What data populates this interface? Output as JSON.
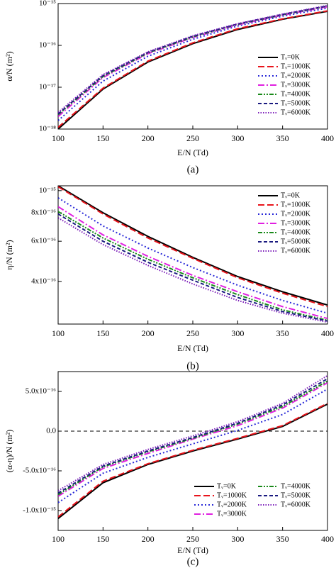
{
  "chart_data": [
    {
      "type": "line",
      "caption": "(a)",
      "xlabel": "E/N (Td)",
      "ylabel": "α/N (m²)",
      "ylog": true,
      "legend": "lower right",
      "legend_columns": 1,
      "x": [
        100,
        150,
        200,
        250,
        300,
        350,
        400
      ],
      "xlim": [
        100,
        400
      ],
      "xticks": [
        100,
        150,
        200,
        250,
        300,
        350,
        400
      ],
      "ylim": [
        1e-18,
        1e-15
      ],
      "yticks": [
        {
          "value": 1e-18,
          "label": "10⁻¹⁸"
        },
        {
          "value": 1e-17,
          "label": "10⁻¹⁷"
        },
        {
          "value": 1e-16,
          "label": "10⁻¹⁶"
        },
        {
          "value": 1e-15,
          "label": "10⁻¹⁵"
        }
      ],
      "series": [
        {
          "name": "Tᵥ=0K",
          "color": "#000000",
          "dash": "solid",
          "values": [
            1e-18,
            9e-18,
            4e-17,
            1.1e-16,
            2.4e-16,
            4.2e-16,
            6.5e-16
          ]
        },
        {
          "name": "Tᵥ=1000K",
          "color": "#e8141b",
          "dash": "dashed",
          "values": [
            1.1e-18,
            9.5e-18,
            4.2e-17,
            1.15e-16,
            2.5e-16,
            4.3e-16,
            6.7e-16
          ]
        },
        {
          "name": "Tᵥ=2000K",
          "color": "#2a2ad8",
          "dash": "dotted",
          "values": [
            1.6e-18,
            1.4e-17,
            5.5e-17,
            1.4e-16,
            2.9e-16,
            5e-16,
            7.8e-16
          ]
        },
        {
          "name": "Tᵥ=3000K",
          "color": "#e020e0",
          "dash": "dashdot",
          "values": [
            2e-18,
            1.7e-17,
            6.3e-17,
            1.55e-16,
            3.1e-16,
            5.3e-16,
            8.4e-16
          ]
        },
        {
          "name": "Tᵥ=4000K",
          "color": "#1a8a1a",
          "dash": "dashdotdot",
          "values": [
            2.2e-18,
            1.8e-17,
            6.6e-17,
            1.6e-16,
            3.2e-16,
            5.4e-16,
            8.7e-16
          ]
        },
        {
          "name": "Tᵥ=5000K",
          "color": "#1a1a80",
          "dash": "shortdash",
          "values": [
            2.3e-18,
            1.9e-17,
            6.8e-17,
            1.65e-16,
            3.25e-16,
            5.5e-16,
            8.8e-16
          ]
        },
        {
          "name": "Tᵥ=6000K",
          "color": "#7a1ab8",
          "dash": "shortdot",
          "values": [
            2.5e-18,
            2e-17,
            7e-17,
            1.7e-16,
            3.3e-16,
            5.6e-16,
            9e-16
          ]
        }
      ]
    },
    {
      "type": "line",
      "caption": "(b)",
      "xlabel": "E/N (Td)",
      "ylabel": "η/N (m²)",
      "ylog": true,
      "legend": "upper right",
      "legend_columns": 1,
      "x": [
        100,
        150,
        200,
        250,
        300,
        350,
        400
      ],
      "xlim": [
        100,
        400
      ],
      "xticks": [
        100,
        150,
        200,
        250,
        300,
        350,
        400
      ],
      "ylim": [
        2.6e-16,
        1.05e-15
      ],
      "yticks": [
        {
          "value": 4e-16,
          "label": "4x10⁻¹⁶"
        },
        {
          "value": 6e-16,
          "label": "6x10⁻¹⁶"
        },
        {
          "value": 8e-16,
          "label": "8x10⁻¹⁶"
        },
        {
          "value": 1e-15,
          "label": "10⁻¹⁵"
        }
      ],
      "series": [
        {
          "name": "Tᵥ=0K",
          "color": "#000000",
          "dash": "solid",
          "values": [
            1.05e-15,
            8e-16,
            6.3e-16,
            5.1e-16,
            4.2e-16,
            3.6e-16,
            3.15e-16
          ]
        },
        {
          "name": "Tᵥ=1000K",
          "color": "#e8141b",
          "dash": "dashed",
          "values": [
            1.04e-15,
            7.9e-16,
            6.2e-16,
            5.05e-16,
            4.15e-16,
            3.55e-16,
            3.1e-16
          ]
        },
        {
          "name": "Tᵥ=2000K",
          "color": "#2a2ad8",
          "dash": "dotted",
          "values": [
            9.3e-16,
            7e-16,
            5.6e-16,
            4.6e-16,
            3.85e-16,
            3.3e-16,
            2.9e-16
          ]
        },
        {
          "name": "Tᵥ=3000K",
          "color": "#e020e0",
          "dash": "dashdot",
          "values": [
            8.5e-16,
            6.4e-16,
            5.15e-16,
            4.25e-16,
            3.6e-16,
            3.1e-16,
            2.75e-16
          ]
        },
        {
          "name": "Tᵥ=4000K",
          "color": "#1a8a1a",
          "dash": "dashdotdot",
          "values": [
            8.1e-16,
            6.2e-16,
            5e-16,
            4.15e-16,
            3.5e-16,
            3e-16,
            2.7e-16
          ]
        },
        {
          "name": "Tᵥ=5000K",
          "color": "#1a1a80",
          "dash": "shortdash",
          "values": [
            7.9e-16,
            6e-16,
            4.85e-16,
            4.05e-16,
            3.4e-16,
            2.95e-16,
            2.68e-16
          ]
        },
        {
          "name": "Tᵥ=6000K",
          "color": "#7a1ab8",
          "dash": "shortdot",
          "values": [
            7.6e-16,
            5.8e-16,
            4.7e-16,
            3.9e-16,
            3.3e-16,
            2.9e-16,
            2.65e-16
          ]
        }
      ]
    },
    {
      "type": "line",
      "caption": "(c)",
      "xlabel": "E/N (Td)",
      "ylabel": "(α-η)/N (m²)",
      "ylog": false,
      "legend": "lower right",
      "legend_columns": 2,
      "hline": 0,
      "x": [
        100,
        150,
        200,
        250,
        300,
        350,
        400
      ],
      "xlim": [
        100,
        400
      ],
      "xticks": [
        100,
        150,
        200,
        250,
        300,
        350,
        400
      ],
      "ylim": [
        -1.25e-15,
        7.5e-16
      ],
      "yticks": [
        {
          "value": -1e-15,
          "label": "-1.0x10⁻¹⁵"
        },
        {
          "value": -5e-16,
          "label": "-5.0x10⁻¹⁶"
        },
        {
          "value": 0,
          "label": "0.0"
        },
        {
          "value": 5e-16,
          "label": "5.0x10⁻¹⁶"
        }
      ],
      "series": [
        {
          "name": "Tᵥ=0K",
          "color": "#000000",
          "dash": "solid",
          "values": [
            -1.1e-15,
            -6.5e-16,
            -4.2e-16,
            -2.5e-16,
            -1e-16,
            6e-17,
            3.4e-16
          ]
        },
        {
          "name": "Tᵥ=1000K",
          "color": "#e8141b",
          "dash": "dashed",
          "values": [
            -1.08e-15,
            -6.3e-16,
            -4.1e-16,
            -2.4e-16,
            -9e-17,
            7e-17,
            3.5e-16
          ]
        },
        {
          "name": "Tᵥ=2000K",
          "color": "#2a2ad8",
          "dash": "dotted",
          "values": [
            -9e-16,
            -5.3e-16,
            -3.3e-16,
            -1.6e-16,
            1e-17,
            2.1e-16,
            5.3e-16
          ]
        },
        {
          "name": "Tᵥ=3000K",
          "color": "#e020e0",
          "dash": "dashdot",
          "values": [
            -8.2e-16,
            -4.7e-16,
            -2.8e-16,
            -1e-16,
            7e-17,
            2.9e-16,
            6.1e-16
          ]
        },
        {
          "name": "Tᵥ=4000K",
          "color": "#1a8a1a",
          "dash": "dashdotdot",
          "values": [
            -8e-16,
            -4.5e-16,
            -2.6e-16,
            -9e-17,
            9e-17,
            3.1e-16,
            6.3e-16
          ]
        },
        {
          "name": "Tᵥ=5000K",
          "color": "#1a1a80",
          "dash": "shortdash",
          "values": [
            -7.8e-16,
            -4.4e-16,
            -2.5e-16,
            -8e-17,
            1e-16,
            3.3e-16,
            6.6e-16
          ]
        },
        {
          "name": "Tᵥ=6000K",
          "color": "#7a1ab8",
          "dash": "shortdot",
          "values": [
            -7.5e-16,
            -4.2e-16,
            -2.3e-16,
            -6e-17,
            1.2e-16,
            3.5e-16,
            7e-16
          ]
        }
      ]
    }
  ]
}
